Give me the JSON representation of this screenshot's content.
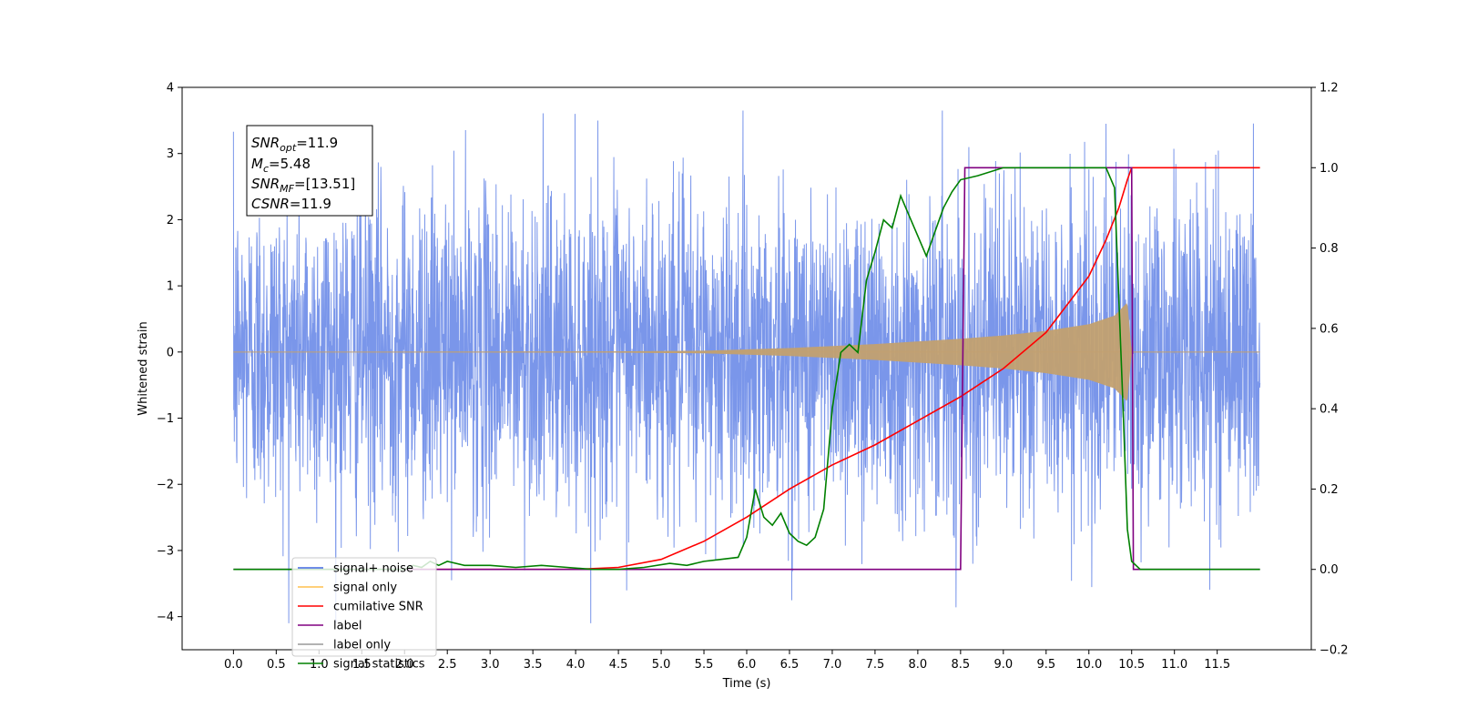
{
  "chart_data": {
    "type": "line",
    "xlabel": "Time (s)",
    "ylabel_left": "Whitened strain",
    "xlim": [
      -0.6,
      12.6
    ],
    "ylim_left": [
      -4.5,
      4.0
    ],
    "ylim_right": [
      -0.2,
      1.2
    ],
    "x_ticks": [
      "0.0",
      "0.5",
      "1.0",
      "1.5",
      "2.0",
      "2.5",
      "3.0",
      "3.5",
      "4.0",
      "4.5",
      "5.0",
      "5.5",
      "6.0",
      "6.5",
      "7.0",
      "7.5",
      "8.0",
      "8.5",
      "9.0",
      "9.5",
      "10.0",
      "10.5",
      "11.0",
      "11.5"
    ],
    "y_left_ticks": [
      "4",
      "3",
      "2",
      "1",
      "0",
      "−1",
      "−2",
      "−3",
      "−4"
    ],
    "y_right_ticks": [
      "1.2",
      "1.0",
      "0.8",
      "0.6",
      "0.4",
      "0.2",
      "0.0",
      "−0.2"
    ],
    "grid": false,
    "info_box": {
      "lines": [
        {
          "sym": "SNR",
          "sub": "opt",
          "value": "=11.9"
        },
        {
          "sym": "M",
          "sub": "c",
          "value": "=5.48"
        },
        {
          "sym": "SNR",
          "sub": "MF",
          "value": "=[13.51]"
        },
        {
          "sym": "CSNR",
          "sub": "",
          "value": "=11.9"
        }
      ]
    },
    "legend": {
      "placement": "lower-left",
      "entries": [
        {
          "label": "signal+ noise",
          "color": "#4169E1"
        },
        {
          "label": "signal only",
          "color": "#FFC04D"
        },
        {
          "label": "cumilative SNR",
          "color": "#FF0000"
        },
        {
          "label": "label",
          "color": "#800080"
        },
        {
          "label": "label only",
          "color": "#999999"
        },
        {
          "label": "signal statistics",
          "color": "#008000"
        }
      ]
    },
    "series": [
      {
        "name": "signal+ noise",
        "axis": "left",
        "color": "#4169E1",
        "noise_std": 1.2,
        "x_range": [
          0.0,
          12.0
        ],
        "typical_range": [
          -2.5,
          2.5
        ],
        "extremes": [
          -4.1,
          3.65
        ]
      },
      {
        "name": "signal only",
        "axis": "left",
        "color": "#C2A070",
        "envelope": {
          "t": [
            0.0,
            4.5,
            5.5,
            6.5,
            7.5,
            8.5,
            9.0,
            9.5,
            10.0,
            10.3,
            10.45,
            10.5,
            12.0
          ],
          "amp": [
            0.0,
            0.01,
            0.02,
            0.06,
            0.12,
            0.2,
            0.25,
            0.32,
            0.42,
            0.55,
            0.75,
            0.0,
            0.0
          ]
        }
      },
      {
        "name": "cumilative SNR",
        "axis": "right",
        "color": "#FF0000",
        "x": [
          2.0,
          4.0,
          4.5,
          5.0,
          5.5,
          6.0,
          6.5,
          7.0,
          7.5,
          8.0,
          8.5,
          9.0,
          9.5,
          10.0,
          10.2,
          10.35,
          10.45,
          10.5,
          12.0
        ],
        "y": [
          0.0,
          0.0,
          0.005,
          0.025,
          0.07,
          0.13,
          0.2,
          0.26,
          0.31,
          0.37,
          0.43,
          0.5,
          0.59,
          0.73,
          0.82,
          0.9,
          0.97,
          1.0,
          1.0
        ]
      },
      {
        "name": "label",
        "axis": "right",
        "color": "#800080",
        "x": [
          0.0,
          8.5,
          8.55,
          10.5,
          10.52,
          12.0
        ],
        "y": [
          0.0,
          0.0,
          1.0,
          1.0,
          0.0,
          0.0
        ]
      },
      {
        "name": "signal statistics",
        "axis": "right",
        "color": "#008000",
        "x": [
          0.0,
          2.0,
          2.1,
          2.2,
          2.3,
          2.4,
          2.5,
          2.7,
          3.0,
          3.3,
          3.6,
          3.9,
          4.2,
          4.5,
          4.8,
          5.1,
          5.3,
          5.5,
          5.7,
          5.9,
          6.0,
          6.1,
          6.2,
          6.3,
          6.4,
          6.5,
          6.6,
          6.7,
          6.8,
          6.9,
          7.0,
          7.1,
          7.2,
          7.3,
          7.4,
          7.5,
          7.6,
          7.7,
          7.8,
          7.9,
          8.0,
          8.1,
          8.2,
          8.3,
          8.4,
          8.5,
          8.7,
          9.0,
          9.5,
          10.0,
          10.2,
          10.3,
          10.4,
          10.45,
          10.5,
          10.6,
          12.0
        ],
        "y": [
          0.0,
          0.0,
          0.01,
          0.005,
          0.02,
          0.01,
          0.02,
          0.01,
          0.01,
          0.005,
          0.01,
          0.005,
          0.0,
          0.0,
          0.005,
          0.015,
          0.01,
          0.02,
          0.025,
          0.03,
          0.08,
          0.2,
          0.13,
          0.11,
          0.14,
          0.09,
          0.07,
          0.06,
          0.08,
          0.15,
          0.4,
          0.54,
          0.56,
          0.54,
          0.72,
          0.79,
          0.87,
          0.85,
          0.93,
          0.88,
          0.83,
          0.78,
          0.84,
          0.9,
          0.94,
          0.97,
          0.98,
          1.0,
          1.0,
          1.0,
          1.0,
          0.95,
          0.4,
          0.1,
          0.02,
          0.0,
          0.0
        ]
      }
    ]
  }
}
